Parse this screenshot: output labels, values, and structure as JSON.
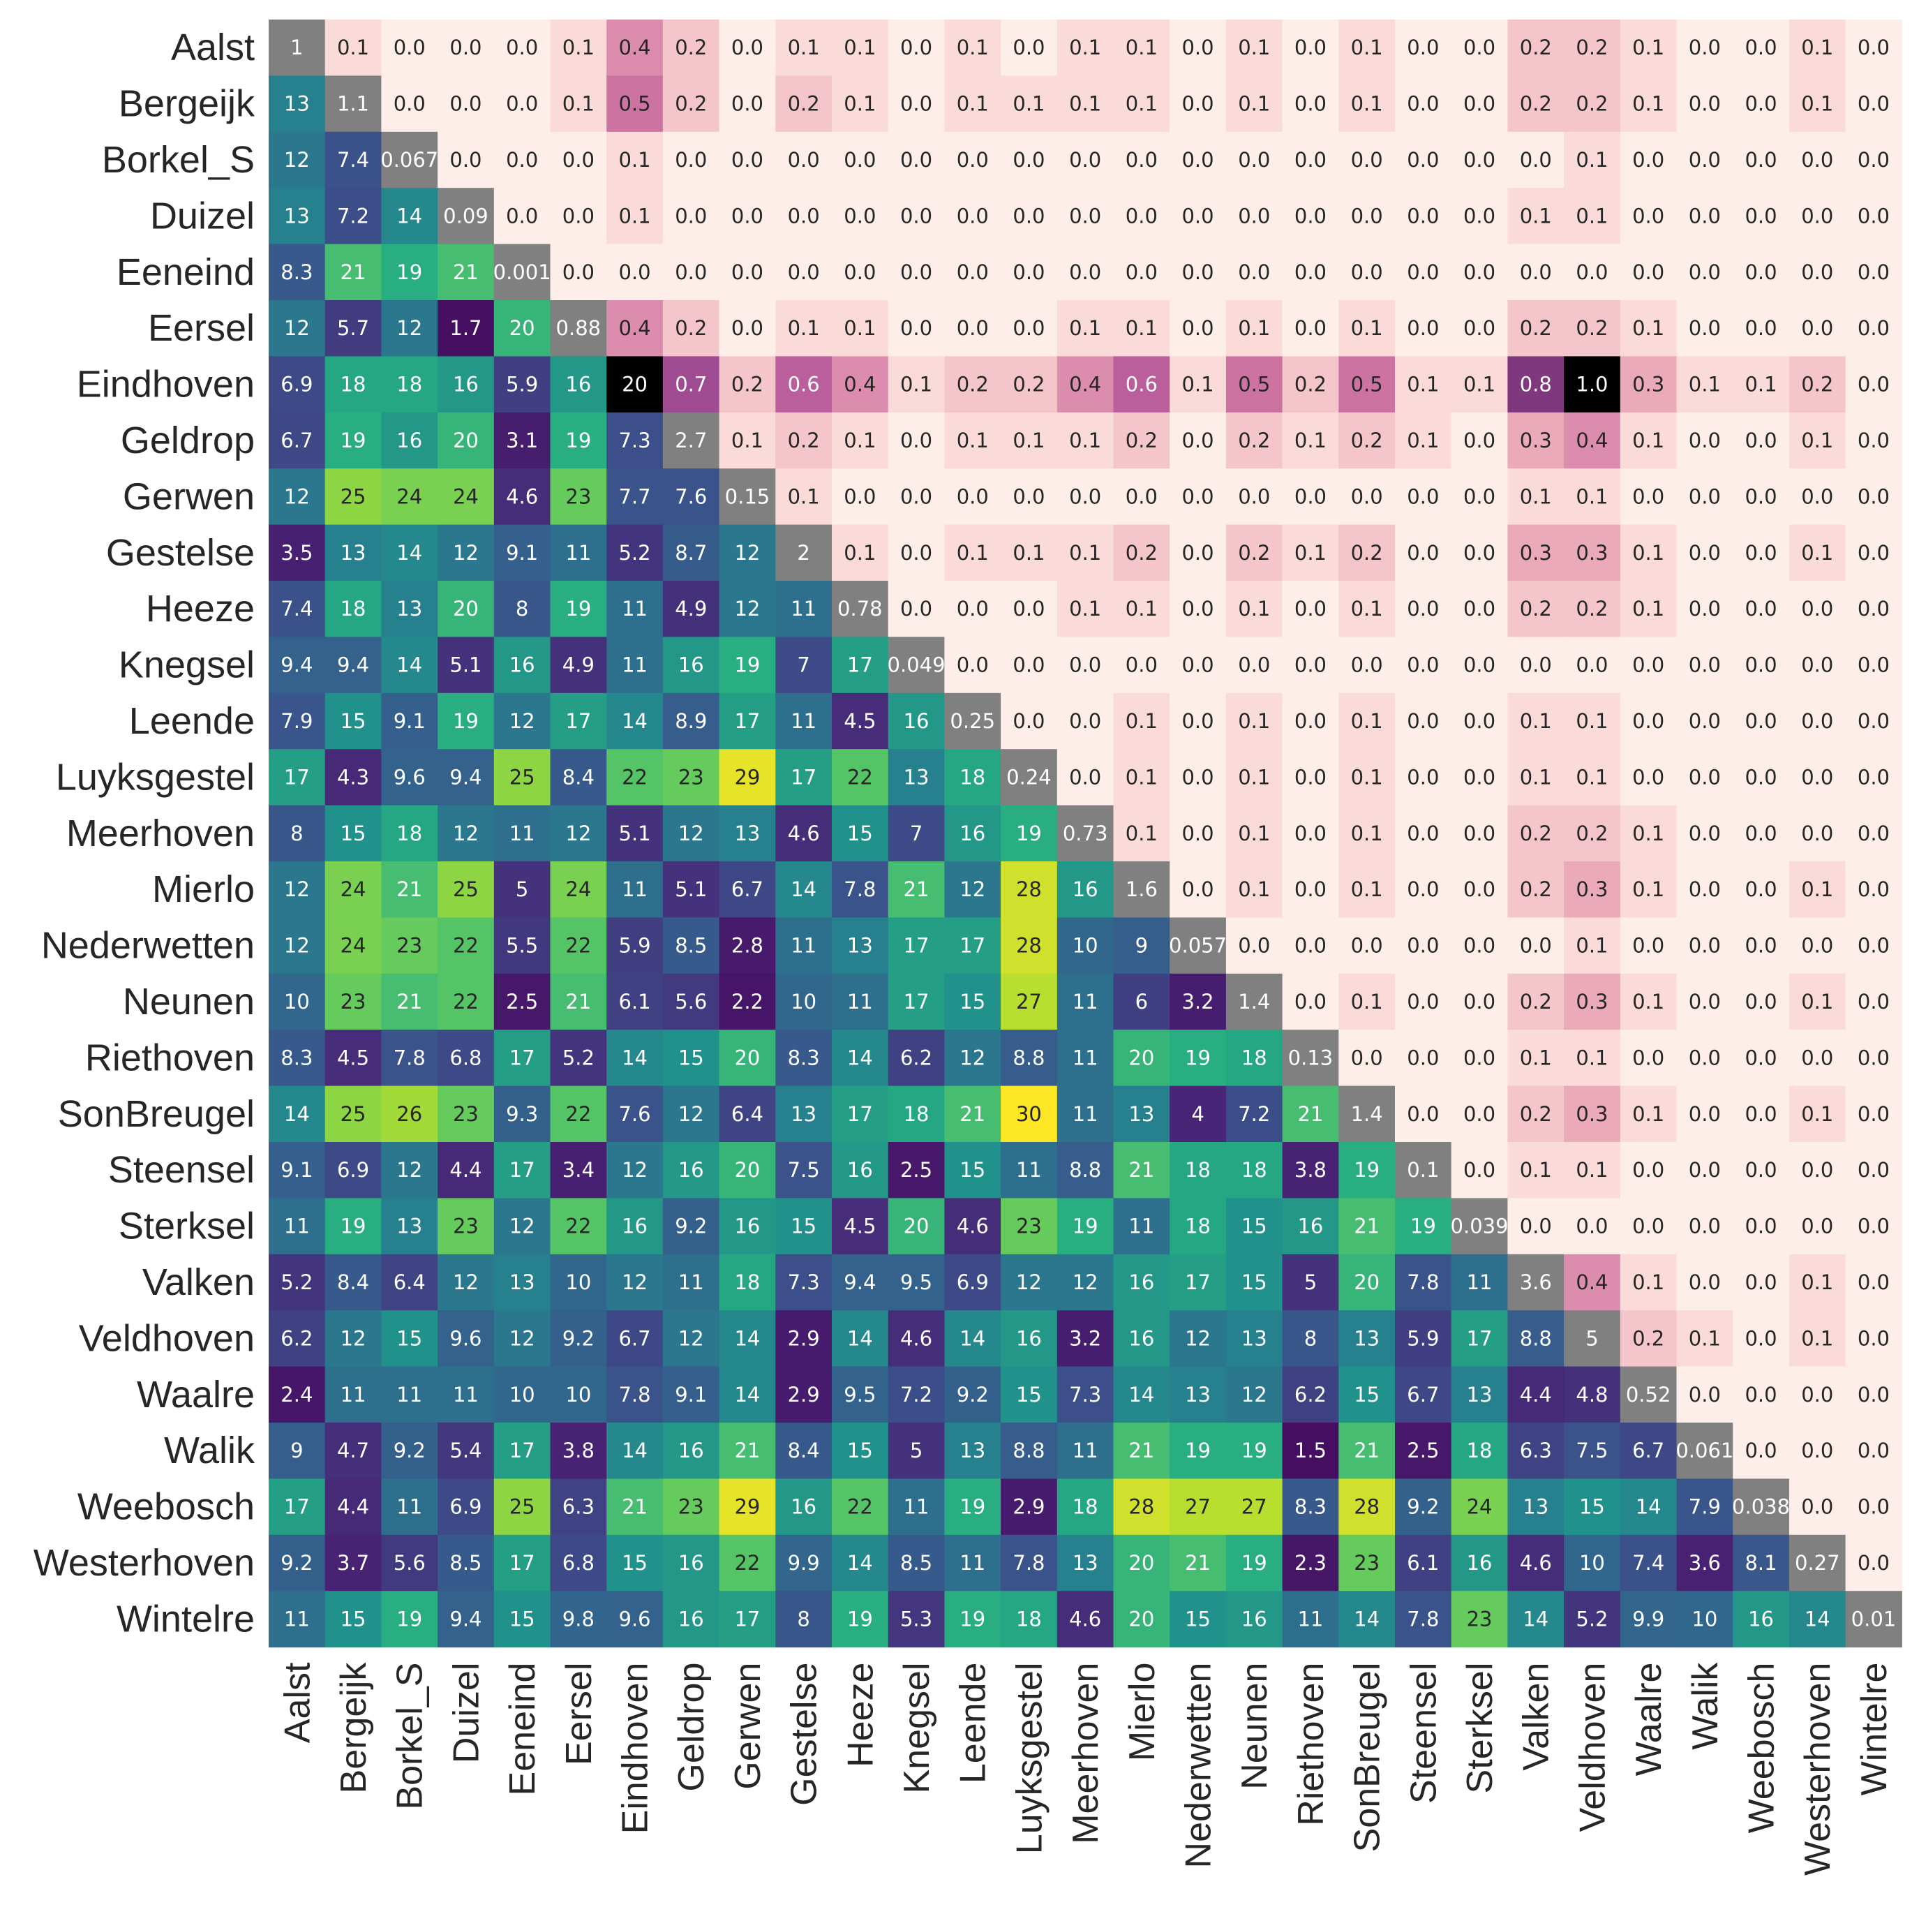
{
  "chart_data": {
    "type": "heatmap",
    "title": "",
    "xlabel": "",
    "ylabel": "",
    "row_labels": [
      "Aalst",
      "Bergeijk",
      "Borkel_S",
      "Duizel",
      "Eeneind",
      "Eersel",
      "Eindhoven",
      "Geldrop",
      "Gerwen",
      "Gestelse",
      "Heeze",
      "Knegsel",
      "Leende",
      "Luyksgestel",
      "Meerhoven",
      "Mierlo",
      "Nederwetten",
      "Neunen",
      "Riethoven",
      "SonBreugel",
      "Steensel",
      "Sterksel",
      "Valken",
      "Veldhoven",
      "Waalre",
      "Walik",
      "Weebosch",
      "Westerhoven",
      "Wintelre"
    ],
    "col_labels": [
      "Aalst",
      "Bergeijk",
      "Borkel_S",
      "Duizel",
      "Eeneind",
      "Eersel",
      "Eindhoven",
      "Geldrop",
      "Gerwen",
      "Gestelse",
      "Heeze",
      "Knegsel",
      "Leende",
      "Luyksgestel",
      "Meerhoven",
      "Mierlo",
      "Nederwetten",
      "Neunen",
      "Riethoven",
      "SonBreugel",
      "Steensel",
      "Sterksel",
      "Valken",
      "Veldhoven",
      "Waalre",
      "Walik",
      "Weebosch",
      "Westerhoven",
      "Wintelre"
    ],
    "lower_colormap": "viridis",
    "lower_range": [
      0,
      30
    ],
    "upper_colormap": "pink-purple",
    "upper_range": [
      0,
      1.0
    ],
    "diagonal_color": "#808080",
    "cells": [
      [
        "1",
        "0.1",
        "0.0",
        "0.0",
        "0.0",
        "0.1",
        "0.4",
        "0.2",
        "0.0",
        "0.1",
        "0.1",
        "0.0",
        "0.1",
        "0.0",
        "0.1",
        "0.1",
        "0.0",
        "0.1",
        "0.0",
        "0.1",
        "0.0",
        "0.0",
        "0.2",
        "0.2",
        "0.1",
        "0.0",
        "0.0",
        "0.1",
        "0.0"
      ],
      [
        "13",
        "1.1",
        "0.0",
        "0.0",
        "0.0",
        "0.1",
        "0.5",
        "0.2",
        "0.0",
        "0.2",
        "0.1",
        "0.0",
        "0.1",
        "0.1",
        "0.1",
        "0.1",
        "0.0",
        "0.1",
        "0.0",
        "0.1",
        "0.0",
        "0.0",
        "0.2",
        "0.2",
        "0.1",
        "0.0",
        "0.0",
        "0.1",
        "0.0"
      ],
      [
        "12",
        "7.4",
        "0.067",
        "0.0",
        "0.0",
        "0.0",
        "0.1",
        "0.0",
        "0.0",
        "0.0",
        "0.0",
        "0.0",
        "0.0",
        "0.0",
        "0.0",
        "0.0",
        "0.0",
        "0.0",
        "0.0",
        "0.0",
        "0.0",
        "0.0",
        "0.0",
        "0.1",
        "0.0",
        "0.0",
        "0.0",
        "0.0",
        "0.0"
      ],
      [
        "13",
        "7.2",
        "14",
        "0.09",
        "0.0",
        "0.0",
        "0.1",
        "0.0",
        "0.0",
        "0.0",
        "0.0",
        "0.0",
        "0.0",
        "0.0",
        "0.0",
        "0.0",
        "0.0",
        "0.0",
        "0.0",
        "0.0",
        "0.0",
        "0.0",
        "0.1",
        "0.1",
        "0.0",
        "0.0",
        "0.0",
        "0.0",
        "0.0"
      ],
      [
        "8.3",
        "21",
        "19",
        "21",
        "0.001",
        "0.0",
        "0.0",
        "0.0",
        "0.0",
        "0.0",
        "0.0",
        "0.0",
        "0.0",
        "0.0",
        "0.0",
        "0.0",
        "0.0",
        "0.0",
        "0.0",
        "0.0",
        "0.0",
        "0.0",
        "0.0",
        "0.0",
        "0.0",
        "0.0",
        "0.0",
        "0.0",
        "0.0"
      ],
      [
        "12",
        "5.7",
        "12",
        "1.7",
        "20",
        "0.88",
        "0.4",
        "0.2",
        "0.0",
        "0.1",
        "0.1",
        "0.0",
        "0.0",
        "0.0",
        "0.1",
        "0.1",
        "0.0",
        "0.1",
        "0.0",
        "0.1",
        "0.0",
        "0.0",
        "0.2",
        "0.2",
        "0.1",
        "0.0",
        "0.0",
        "0.0",
        "0.0"
      ],
      [
        "6.9",
        "18",
        "18",
        "16",
        "5.9",
        "16",
        "20",
        "0.7",
        "0.2",
        "0.6",
        "0.4",
        "0.1",
        "0.2",
        "0.2",
        "0.4",
        "0.6",
        "0.1",
        "0.5",
        "0.2",
        "0.5",
        "0.1",
        "0.1",
        "0.8",
        "1.0",
        "0.3",
        "0.1",
        "0.1",
        "0.2",
        "0.0"
      ],
      [
        "6.7",
        "19",
        "16",
        "20",
        "3.1",
        "19",
        "7.3",
        "2.7",
        "0.1",
        "0.2",
        "0.1",
        "0.0",
        "0.1",
        "0.1",
        "0.1",
        "0.2",
        "0.0",
        "0.2",
        "0.1",
        "0.2",
        "0.1",
        "0.0",
        "0.3",
        "0.4",
        "0.1",
        "0.0",
        "0.0",
        "0.1",
        "0.0"
      ],
      [
        "12",
        "25",
        "24",
        "24",
        "4.6",
        "23",
        "7.7",
        "7.6",
        "0.15",
        "0.1",
        "0.0",
        "0.0",
        "0.0",
        "0.0",
        "0.0",
        "0.0",
        "0.0",
        "0.0",
        "0.0",
        "0.0",
        "0.0",
        "0.0",
        "0.1",
        "0.1",
        "0.0",
        "0.0",
        "0.0",
        "0.0",
        "0.0"
      ],
      [
        "3.5",
        "13",
        "14",
        "12",
        "9.1",
        "11",
        "5.2",
        "8.7",
        "12",
        "2",
        "0.1",
        "0.0",
        "0.1",
        "0.1",
        "0.1",
        "0.2",
        "0.0",
        "0.2",
        "0.1",
        "0.2",
        "0.0",
        "0.0",
        "0.3",
        "0.3",
        "0.1",
        "0.0",
        "0.0",
        "0.1",
        "0.0"
      ],
      [
        "7.4",
        "18",
        "13",
        "20",
        "8",
        "19",
        "11",
        "4.9",
        "12",
        "11",
        "0.78",
        "0.0",
        "0.0",
        "0.0",
        "0.1",
        "0.1",
        "0.0",
        "0.1",
        "0.0",
        "0.1",
        "0.0",
        "0.0",
        "0.2",
        "0.2",
        "0.1",
        "0.0",
        "0.0",
        "0.0",
        "0.0"
      ],
      [
        "9.4",
        "9.4",
        "14",
        "5.1",
        "16",
        "4.9",
        "11",
        "16",
        "19",
        "7",
        "17",
        "0.049",
        "0.0",
        "0.0",
        "0.0",
        "0.0",
        "0.0",
        "0.0",
        "0.0",
        "0.0",
        "0.0",
        "0.0",
        "0.0",
        "0.0",
        "0.0",
        "0.0",
        "0.0",
        "0.0",
        "0.0"
      ],
      [
        "7.9",
        "15",
        "9.1",
        "19",
        "12",
        "17",
        "14",
        "8.9",
        "17",
        "11",
        "4.5",
        "16",
        "0.25",
        "0.0",
        "0.0",
        "0.1",
        "0.0",
        "0.1",
        "0.0",
        "0.1",
        "0.0",
        "0.0",
        "0.1",
        "0.1",
        "0.0",
        "0.0",
        "0.0",
        "0.0",
        "0.0"
      ],
      [
        "17",
        "4.3",
        "9.6",
        "9.4",
        "25",
        "8.4",
        "22",
        "23",
        "29",
        "17",
        "22",
        "13",
        "18",
        "0.24",
        "0.0",
        "0.1",
        "0.0",
        "0.1",
        "0.0",
        "0.1",
        "0.0",
        "0.0",
        "0.1",
        "0.1",
        "0.0",
        "0.0",
        "0.0",
        "0.0",
        "0.0"
      ],
      [
        "8",
        "15",
        "18",
        "12",
        "11",
        "12",
        "5.1",
        "12",
        "13",
        "4.6",
        "15",
        "7",
        "16",
        "19",
        "0.73",
        "0.1",
        "0.0",
        "0.1",
        "0.0",
        "0.1",
        "0.0",
        "0.0",
        "0.2",
        "0.2",
        "0.1",
        "0.0",
        "0.0",
        "0.0",
        "0.0"
      ],
      [
        "12",
        "24",
        "21",
        "25",
        "5",
        "24",
        "11",
        "5.1",
        "6.7",
        "14",
        "7.8",
        "21",
        "12",
        "28",
        "16",
        "1.6",
        "0.0",
        "0.1",
        "0.0",
        "0.1",
        "0.0",
        "0.0",
        "0.2",
        "0.3",
        "0.1",
        "0.0",
        "0.0",
        "0.1",
        "0.0"
      ],
      [
        "12",
        "24",
        "23",
        "22",
        "5.5",
        "22",
        "5.9",
        "8.5",
        "2.8",
        "11",
        "13",
        "17",
        "17",
        "28",
        "10",
        "9",
        "0.057",
        "0.0",
        "0.0",
        "0.0",
        "0.0",
        "0.0",
        "0.0",
        "0.1",
        "0.0",
        "0.0",
        "0.0",
        "0.0",
        "0.0"
      ],
      [
        "10",
        "23",
        "21",
        "22",
        "2.5",
        "21",
        "6.1",
        "5.6",
        "2.2",
        "10",
        "11",
        "17",
        "15",
        "27",
        "11",
        "6",
        "3.2",
        "1.4",
        "0.0",
        "0.1",
        "0.0",
        "0.0",
        "0.2",
        "0.3",
        "0.1",
        "0.0",
        "0.0",
        "0.1",
        "0.0"
      ],
      [
        "8.3",
        "4.5",
        "7.8",
        "6.8",
        "17",
        "5.2",
        "14",
        "15",
        "20",
        "8.3",
        "14",
        "6.2",
        "12",
        "8.8",
        "11",
        "20",
        "19",
        "18",
        "0.13",
        "0.0",
        "0.0",
        "0.0",
        "0.1",
        "0.1",
        "0.0",
        "0.0",
        "0.0",
        "0.0",
        "0.0"
      ],
      [
        "14",
        "25",
        "26",
        "23",
        "9.3",
        "22",
        "7.6",
        "12",
        "6.4",
        "13",
        "17",
        "18",
        "21",
        "30",
        "11",
        "13",
        "4",
        "7.2",
        "21",
        "1.4",
        "0.0",
        "0.0",
        "0.2",
        "0.3",
        "0.1",
        "0.0",
        "0.0",
        "0.1",
        "0.0"
      ],
      [
        "9.1",
        "6.9",
        "12",
        "4.4",
        "17",
        "3.4",
        "12",
        "16",
        "20",
        "7.5",
        "16",
        "2.5",
        "15",
        "11",
        "8.8",
        "21",
        "18",
        "18",
        "3.8",
        "19",
        "0.1",
        "0.0",
        "0.1",
        "0.1",
        "0.0",
        "0.0",
        "0.0",
        "0.0",
        "0.0"
      ],
      [
        "11",
        "19",
        "13",
        "23",
        "12",
        "22",
        "16",
        "9.2",
        "16",
        "15",
        "4.5",
        "20",
        "4.6",
        "23",
        "19",
        "11",
        "18",
        "15",
        "16",
        "21",
        "19",
        "0.039",
        "0.0",
        "0.0",
        "0.0",
        "0.0",
        "0.0",
        "0.0",
        "0.0"
      ],
      [
        "5.2",
        "8.4",
        "6.4",
        "12",
        "13",
        "10",
        "12",
        "11",
        "18",
        "7.3",
        "9.4",
        "9.5",
        "6.9",
        "12",
        "12",
        "16",
        "17",
        "15",
        "5",
        "20",
        "7.8",
        "11",
        "3.6",
        "0.4",
        "0.1",
        "0.0",
        "0.0",
        "0.1",
        "0.0"
      ],
      [
        "6.2",
        "12",
        "15",
        "9.6",
        "12",
        "9.2",
        "6.7",
        "12",
        "14",
        "2.9",
        "14",
        "4.6",
        "14",
        "16",
        "3.2",
        "16",
        "12",
        "13",
        "8",
        "13",
        "5.9",
        "17",
        "8.8",
        "5",
        "0.2",
        "0.1",
        "0.0",
        "0.1",
        "0.0"
      ],
      [
        "2.4",
        "11",
        "11",
        "11",
        "10",
        "10",
        "7.8",
        "9.1",
        "14",
        "2.9",
        "9.5",
        "7.2",
        "9.2",
        "15",
        "7.3",
        "14",
        "13",
        "12",
        "6.2",
        "15",
        "6.7",
        "13",
        "4.4",
        "4.8",
        "0.52",
        "0.0",
        "0.0",
        "0.0",
        "0.0"
      ],
      [
        "9",
        "4.7",
        "9.2",
        "5.4",
        "17",
        "3.8",
        "14",
        "16",
        "21",
        "8.4",
        "15",
        "5",
        "13",
        "8.8",
        "11",
        "21",
        "19",
        "19",
        "1.5",
        "21",
        "2.5",
        "18",
        "6.3",
        "7.5",
        "6.7",
        "0.061",
        "0.0",
        "0.0",
        "0.0"
      ],
      [
        "17",
        "4.4",
        "11",
        "6.9",
        "25",
        "6.3",
        "21",
        "23",
        "29",
        "16",
        "22",
        "11",
        "19",
        "2.9",
        "18",
        "28",
        "27",
        "27",
        "8.3",
        "28",
        "9.2",
        "24",
        "13",
        "15",
        "14",
        "7.9",
        "0.038",
        "0.0",
        "0.0"
      ],
      [
        "9.2",
        "3.7",
        "5.6",
        "8.5",
        "17",
        "6.8",
        "15",
        "16",
        "22",
        "9.9",
        "14",
        "8.5",
        "11",
        "7.8",
        "13",
        "20",
        "21",
        "19",
        "2.3",
        "23",
        "6.1",
        "16",
        "4.6",
        "10",
        "7.4",
        "3.6",
        "8.1",
        "0.27",
        "0.0"
      ],
      [
        "11",
        "15",
        "19",
        "9.4",
        "15",
        "9.8",
        "9.6",
        "16",
        "17",
        "8",
        "19",
        "5.3",
        "19",
        "18",
        "4.6",
        "20",
        "15",
        "16",
        "11",
        "14",
        "7.8",
        "23",
        "14",
        "5.2",
        "9.9",
        "10",
        "16",
        "14",
        "0.01"
      ]
    ]
  }
}
